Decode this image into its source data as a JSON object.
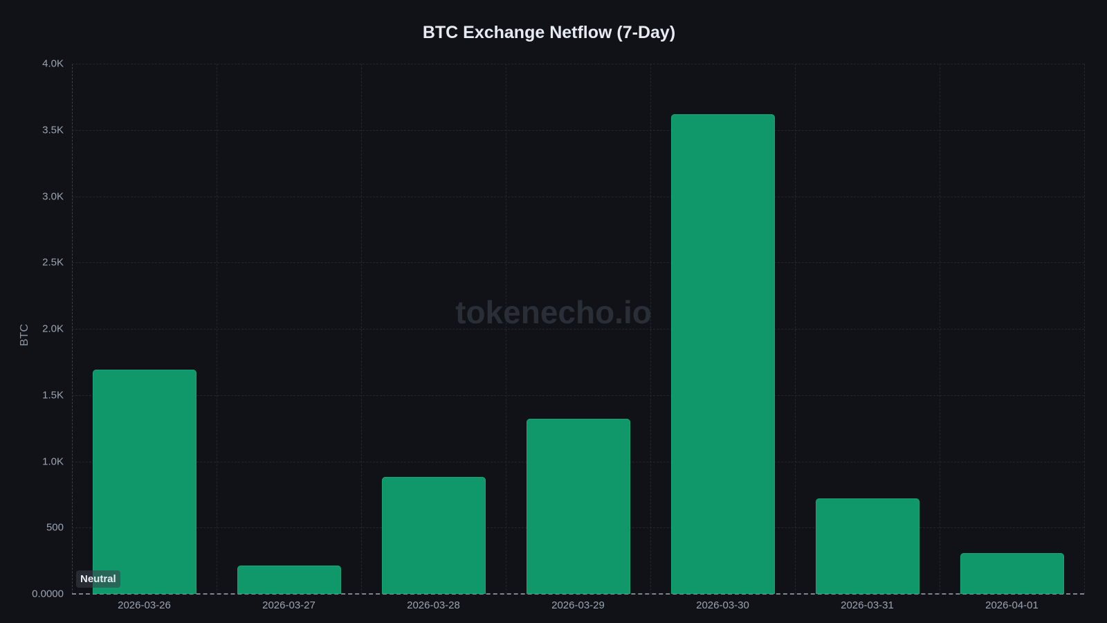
{
  "chart_data": {
    "type": "bar",
    "title": "BTC Exchange Netflow (7-Day)",
    "xlabel": "",
    "ylabel": "BTC",
    "categories": [
      "2026-03-26",
      "2026-03-27",
      "2026-03-28",
      "2026-03-29",
      "2026-03-30",
      "2026-03-31",
      "2026-04-01"
    ],
    "values": [
      1690,
      213,
      883,
      1319,
      3620,
      723,
      306
    ],
    "ylim": [
      0,
      4000
    ],
    "yticks": [
      0,
      500,
      1000,
      1500,
      2000,
      2500,
      3000,
      3500,
      4000
    ],
    "ytick_labels": [
      "0.0000",
      "500",
      "1.0K",
      "1.5K",
      "2.0K",
      "2.5K",
      "3.0K",
      "3.5K",
      "4.0K"
    ],
    "grid": true,
    "bar_color": "#10986b",
    "annotations": [
      "Neutral"
    ]
  },
  "watermark": "tokenecho.io",
  "badge": "Neutral",
  "colors": {
    "background": "#111217",
    "bar": "#10986b",
    "text": "#9aa4b0",
    "title": "#e6ebf2"
  }
}
